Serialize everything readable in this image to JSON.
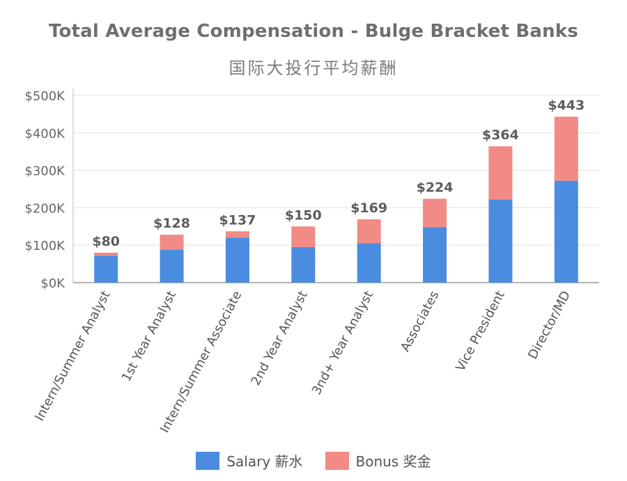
{
  "chart_data": {
    "type": "bar",
    "stacked": true,
    "title": "Total Average Compensation - Bulge Bracket Banks",
    "subtitle": "国际大投行平均薪酬",
    "categories": [
      "Intern/Summer Analyst",
      "1st Year Analyst",
      "Intern/Summer Associate",
      "2nd Year Analyst",
      "3nd+ Year Analyst",
      "Associates",
      "Vice President",
      "Director/MD"
    ],
    "series": [
      {
        "name": "Salary 薪水",
        "color": "#4a8de0",
        "values": [
          72,
          88,
          120,
          95,
          105,
          148,
          222,
          272
        ]
      },
      {
        "name": "Bonus 奖金",
        "color": "#f28b86",
        "values": [
          8,
          40,
          17,
          55,
          64,
          76,
          142,
          171
        ]
      }
    ],
    "totals": [
      80,
      128,
      137,
      150,
      169,
      224,
      364,
      443
    ],
    "total_labels": [
      "$80",
      "$128",
      "$137",
      "$150",
      "$169",
      "$224",
      "$364",
      "$443"
    ],
    "ylim": [
      0,
      500
    ],
    "yticks": [
      0,
      100,
      200,
      300,
      400,
      500
    ],
    "ytick_labels": [
      "$0K",
      "$100K",
      "$200K",
      "$300K",
      "$400K",
      "$500K"
    ],
    "grid": true,
    "legend_position": "bottom-center"
  }
}
